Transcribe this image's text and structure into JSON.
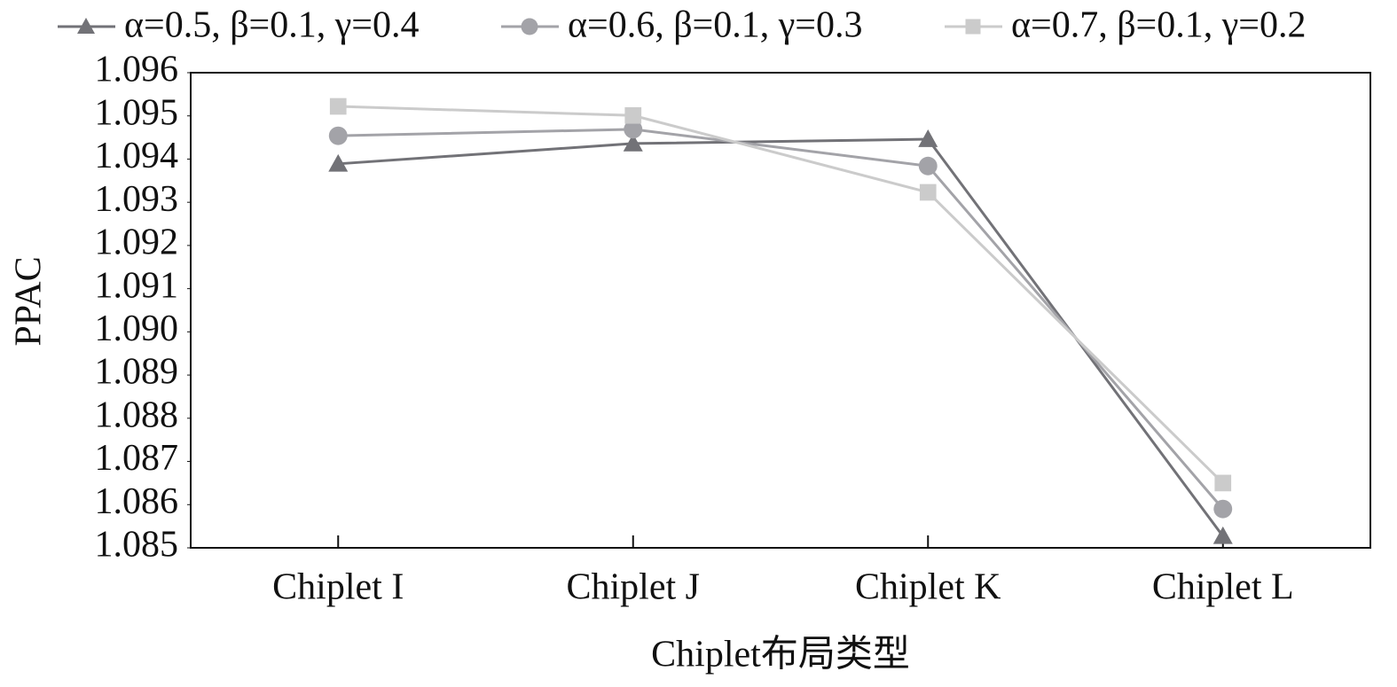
{
  "chart_data": {
    "type": "line",
    "y_label": "PPAC",
    "x_label": "Chiplet布局类型",
    "categories": [
      "Chiplet I",
      "Chiplet J",
      "Chiplet K",
      "Chiplet L"
    ],
    "series": [
      {
        "name": "α=0.5, β=0.1, γ=0.4",
        "color": "#727277",
        "marker": "triangle",
        "values": [
          1.09389,
          1.09436,
          1.09446,
          1.08527
        ]
      },
      {
        "name": "α=0.6, β=0.1, γ=0.3",
        "color": "#a3a3a8",
        "marker": "circle",
        "values": [
          1.09454,
          1.09469,
          1.09384,
          1.0859
        ]
      },
      {
        "name": "α=0.7, β=0.1, γ=0.2",
        "color": "#cbcbcb",
        "marker": "square",
        "values": [
          1.09522,
          1.09501,
          1.09323,
          1.0865
        ]
      }
    ],
    "ylim": [
      1.085,
      1.096
    ],
    "yticks": [
      1.085,
      1.086,
      1.087,
      1.088,
      1.089,
      {
        "value": 1.09,
        "label": "1.090"
      },
      1.091,
      1.092,
      1.093,
      1.094,
      1.095,
      1.096
    ],
    "grid": false
  }
}
